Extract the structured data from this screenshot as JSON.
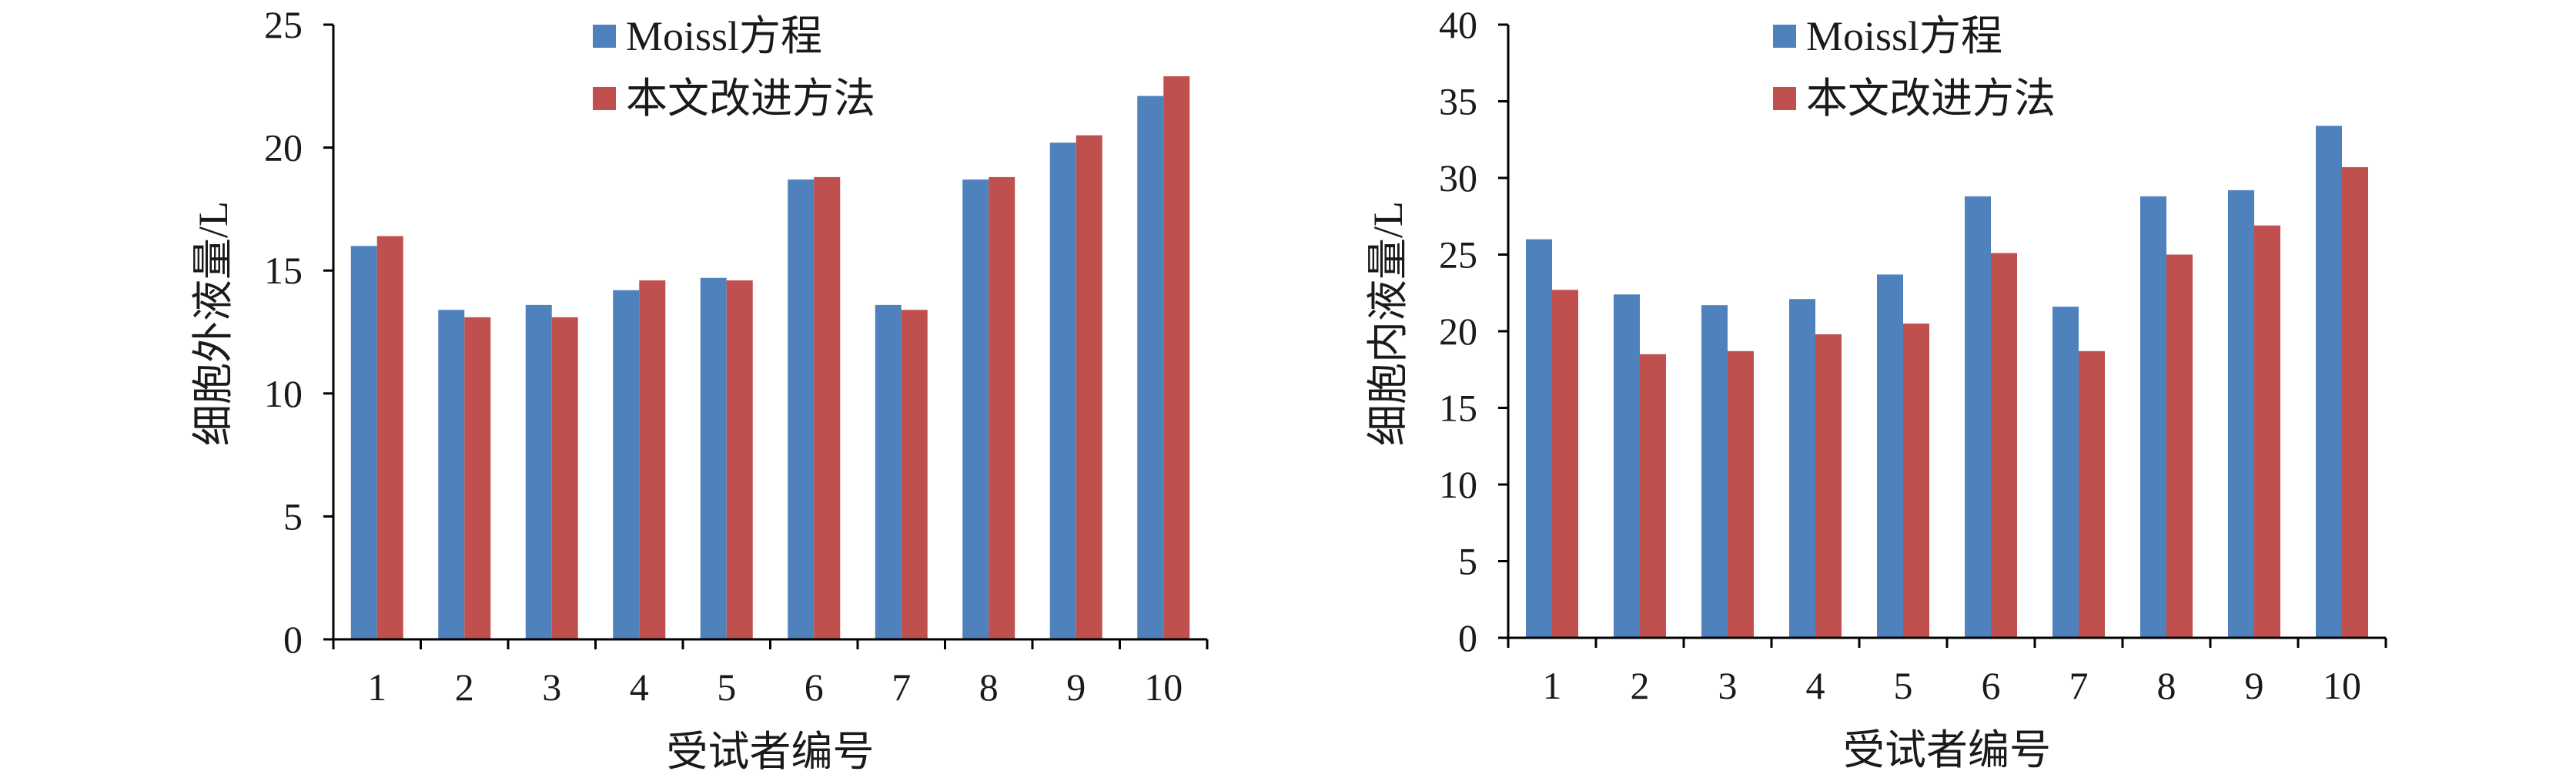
{
  "chart_data": [
    {
      "type": "bar",
      "categories": [
        "1",
        "2",
        "3",
        "4",
        "5",
        "6",
        "7",
        "8",
        "9",
        "10"
      ],
      "series": [
        {
          "name": "Moissl方程",
          "color": "#4F81BD",
          "values": [
            16.0,
            13.4,
            13.6,
            14.2,
            14.7,
            18.7,
            13.6,
            18.7,
            20.2,
            22.1
          ]
        },
        {
          "name": "本文改进方法",
          "color": "#C0504D",
          "values": [
            16.4,
            13.1,
            13.1,
            14.6,
            14.6,
            18.8,
            13.4,
            18.8,
            20.5,
            22.9
          ]
        }
      ],
      "xlabel": "受试者编号",
      "ylabel": "细胞外液量/L",
      "ylim": [
        0,
        25
      ],
      "yticks": [
        "0",
        "5",
        "10",
        "15",
        "20",
        "25"
      ],
      "grid": false,
      "legend": "top-center"
    },
    {
      "type": "bar",
      "categories": [
        "1",
        "2",
        "3",
        "4",
        "5",
        "6",
        "7",
        "8",
        "9",
        "10"
      ],
      "series": [
        {
          "name": "Moissl方程",
          "color": "#4F81BD",
          "values": [
            26.0,
            22.4,
            21.7,
            22.1,
            23.7,
            28.8,
            21.6,
            28.8,
            29.2,
            33.4
          ]
        },
        {
          "name": "本文改进方法",
          "color": "#C0504D",
          "values": [
            22.7,
            18.5,
            18.7,
            19.8,
            20.5,
            25.1,
            18.7,
            25.0,
            26.9,
            30.7
          ]
        }
      ],
      "xlabel": "受试者编号",
      "ylabel": "细胞内液量/L",
      "ylim": [
        0,
        40
      ],
      "yticks": [
        "0",
        "5",
        "10",
        "15",
        "20",
        "25",
        "30",
        "35",
        "40"
      ],
      "grid": false,
      "legend": "top-center"
    }
  ]
}
